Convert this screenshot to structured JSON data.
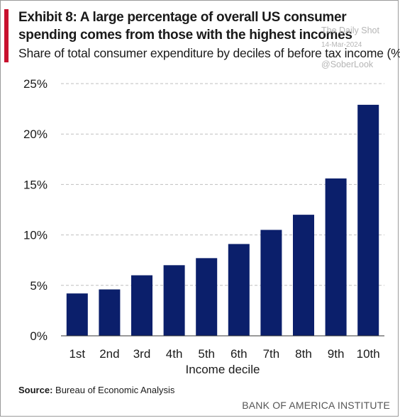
{
  "header": {
    "title": "Exhibit 8: A large percentage of overall US consumer spending comes from those with the highest incomes",
    "subtitle": "Share of total consumer expenditure by deciles of before tax income (%)"
  },
  "watermark": {
    "name": "The Daily Shot",
    "date": "14-Mar-2024",
    "handle": "@SoberLook"
  },
  "footer": {
    "source_label": "Source:",
    "source_text": "Bureau of Economic Analysis",
    "brand": "BANK OF AMERICA INSTITUTE"
  },
  "colors": {
    "accent": "#c8102e",
    "bar": "#0b1f6b",
    "grid": "#bfbfbf"
  },
  "chart_data": {
    "type": "bar",
    "title": "Exhibit 8: A large percentage of overall US consumer spending comes from those with the highest incomes",
    "subtitle": "Share of total consumer expenditure by deciles of before tax income (%)",
    "xlabel": "Income decile",
    "ylabel": "",
    "categories": [
      "1st",
      "2nd",
      "3rd",
      "4th",
      "5th",
      "6th",
      "7th",
      "8th",
      "9th",
      "10th"
    ],
    "values": [
      4.2,
      4.6,
      6.0,
      7.0,
      7.7,
      9.1,
      10.5,
      12.0,
      15.6,
      22.9
    ],
    "ylim": [
      0,
      25
    ],
    "yticks": [
      0,
      5,
      10,
      15,
      20,
      25
    ],
    "ytick_labels": [
      "0%",
      "5%",
      "10%",
      "15%",
      "20%",
      "25%"
    ],
    "grid": "horizontal dashed",
    "legend": "none"
  }
}
